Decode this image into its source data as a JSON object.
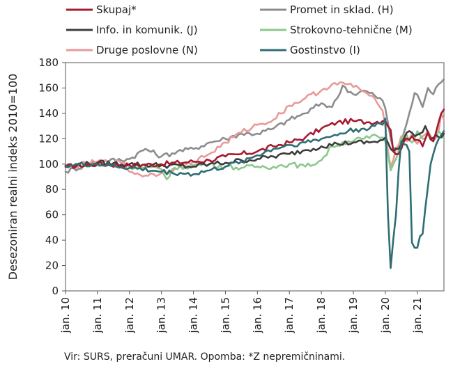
{
  "chart_data": {
    "type": "line",
    "title": "",
    "ylabel": "Desezoniran realni indeks 2010=100",
    "xlabel": "",
    "ylim": [
      0,
      180
    ],
    "yticks": [
      0,
      20,
      40,
      60,
      80,
      100,
      120,
      140,
      160,
      180
    ],
    "x_start": "2010-01",
    "x_step": "month",
    "x_end": "2021-09",
    "xticks": [
      "jan. 10",
      "jan. 11",
      "jan. 12",
      "jan. 13",
      "jan. 14",
      "jan. 15",
      "jan. 16",
      "jan. 17",
      "jan. 18",
      "jan. 19",
      "jan. 20",
      "jan. 21"
    ],
    "grid": false,
    "legend_position": "top",
    "series": [
      {
        "name": "Skupaj*",
        "color": "#a6192e",
        "keypoints": [
          [
            0,
            98
          ],
          [
            12,
            100
          ],
          [
            24,
            99
          ],
          [
            36,
            100
          ],
          [
            48,
            102
          ],
          [
            54,
            103
          ],
          [
            60,
            106
          ],
          [
            66,
            108
          ],
          [
            72,
            110
          ],
          [
            78,
            114
          ],
          [
            84,
            117
          ],
          [
            90,
            121
          ],
          [
            96,
            128
          ],
          [
            102,
            133
          ],
          [
            108,
            134
          ],
          [
            114,
            133
          ],
          [
            119,
            134
          ],
          [
            120,
            134
          ],
          [
            122,
            127
          ],
          [
            123,
            110
          ],
          [
            125,
            108
          ],
          [
            127,
            118
          ],
          [
            130,
            122
          ],
          [
            132,
            119
          ],
          [
            134,
            114
          ],
          [
            136,
            125
          ],
          [
            138,
            118
          ],
          [
            140,
            133
          ],
          [
            141,
            140
          ],
          [
            142,
            143
          ]
        ]
      },
      {
        "name": "Promet in sklad. (H)",
        "color": "#8c8c8c",
        "keypoints": [
          [
            0,
            94
          ],
          [
            12,
            102
          ],
          [
            24,
            104
          ],
          [
            30,
            112
          ],
          [
            36,
            106
          ],
          [
            42,
            110
          ],
          [
            48,
            112
          ],
          [
            54,
            117
          ],
          [
            60,
            120
          ],
          [
            66,
            124
          ],
          [
            72,
            124
          ],
          [
            78,
            128
          ],
          [
            84,
            135
          ],
          [
            90,
            140
          ],
          [
            96,
            148
          ],
          [
            100,
            145
          ],
          [
            102,
            152
          ],
          [
            104,
            162
          ],
          [
            108,
            155
          ],
          [
            112,
            158
          ],
          [
            116,
            154
          ],
          [
            119,
            150
          ],
          [
            120,
            144
          ],
          [
            122,
            120
          ],
          [
            123,
            112
          ],
          [
            125,
            112
          ],
          [
            127,
            125
          ],
          [
            129,
            140
          ],
          [
            131,
            156
          ],
          [
            133,
            150
          ],
          [
            134,
            145
          ],
          [
            136,
            160
          ],
          [
            138,
            155
          ],
          [
            140,
            163
          ],
          [
            142,
            167
          ]
        ]
      },
      {
        "name": "Info. in komunik. (J)",
        "color": "#3c3c3c",
        "keypoints": [
          [
            0,
            98
          ],
          [
            12,
            101
          ],
          [
            24,
            100
          ],
          [
            36,
            99
          ],
          [
            48,
            98
          ],
          [
            54,
            100
          ],
          [
            60,
            101
          ],
          [
            66,
            103
          ],
          [
            72,
            104
          ],
          [
            78,
            106
          ],
          [
            84,
            108
          ],
          [
            90,
            111
          ],
          [
            96,
            114
          ],
          [
            102,
            116
          ],
          [
            108,
            117
          ],
          [
            114,
            117
          ],
          [
            119,
            119
          ],
          [
            120,
            121
          ],
          [
            122,
            112
          ],
          [
            123,
            110
          ],
          [
            125,
            112
          ],
          [
            127,
            120
          ],
          [
            129,
            126
          ],
          [
            131,
            122
          ],
          [
            133,
            124
          ],
          [
            135,
            130
          ],
          [
            137,
            120
          ],
          [
            139,
            123
          ],
          [
            141,
            121
          ],
          [
            142,
            124
          ]
        ]
      },
      {
        "name": "Strokovno-tehnične (M)",
        "color": "#8cc88c",
        "keypoints": [
          [
            0,
            99
          ],
          [
            12,
            99
          ],
          [
            24,
            98
          ],
          [
            36,
            96
          ],
          [
            38,
            88
          ],
          [
            40,
            96
          ],
          [
            48,
            99
          ],
          [
            54,
            100
          ],
          [
            60,
            98
          ],
          [
            66,
            97
          ],
          [
            72,
            98
          ],
          [
            78,
            98
          ],
          [
            84,
            100
          ],
          [
            90,
            98
          ],
          [
            96,
            103
          ],
          [
            100,
            114
          ],
          [
            106,
            118
          ],
          [
            112,
            120
          ],
          [
            117,
            122
          ],
          [
            119,
            121
          ],
          [
            120,
            118
          ],
          [
            121,
            108
          ],
          [
            122,
            95
          ],
          [
            124,
            104
          ],
          [
            126,
            120
          ],
          [
            128,
            123
          ],
          [
            130,
            117
          ],
          [
            132,
            126
          ],
          [
            134,
            120
          ],
          [
            136,
            124
          ],
          [
            138,
            118
          ],
          [
            140,
            126
          ],
          [
            142,
            120
          ]
        ]
      },
      {
        "name": "Druge poslovne (N)",
        "color": "#e89a9a",
        "keypoints": [
          [
            0,
            97
          ],
          [
            12,
            102
          ],
          [
            22,
            101
          ],
          [
            24,
            94
          ],
          [
            30,
            91
          ],
          [
            36,
            93
          ],
          [
            42,
            96
          ],
          [
            48,
            102
          ],
          [
            54,
            108
          ],
          [
            60,
            117
          ],
          [
            66,
            125
          ],
          [
            72,
            131
          ],
          [
            78,
            135
          ],
          [
            84,
            146
          ],
          [
            90,
            152
          ],
          [
            96,
            158
          ],
          [
            100,
            163
          ],
          [
            106,
            163
          ],
          [
            110,
            160
          ],
          [
            114,
            154
          ],
          [
            117,
            148
          ],
          [
            119,
            142
          ],
          [
            120,
            130
          ],
          [
            121,
            110
          ],
          [
            122,
            98
          ],
          [
            124,
            112
          ],
          [
            126,
            122
          ],
          [
            128,
            118
          ],
          [
            130,
            124
          ],
          [
            132,
            116
          ],
          [
            134,
            122
          ],
          [
            136,
            126
          ],
          [
            138,
            118
          ],
          [
            140,
            126
          ],
          [
            141,
            140
          ],
          [
            142,
            135
          ]
        ]
      },
      {
        "name": "Gostinstvo (I)",
        "color": "#2e6e73",
        "keypoints": [
          [
            0,
            99
          ],
          [
            12,
            100
          ],
          [
            24,
            97
          ],
          [
            36,
            94
          ],
          [
            48,
            92
          ],
          [
            54,
            95
          ],
          [
            60,
            98
          ],
          [
            66,
            102
          ],
          [
            72,
            107
          ],
          [
            78,
            112
          ],
          [
            84,
            115
          ],
          [
            90,
            117
          ],
          [
            96,
            120
          ],
          [
            100,
            122
          ],
          [
            106,
            126
          ],
          [
            112,
            128
          ],
          [
            116,
            130
          ],
          [
            118,
            132
          ],
          [
            119,
            131
          ],
          [
            120,
            136
          ],
          [
            121,
            60
          ],
          [
            122,
            18
          ],
          [
            124,
            60
          ],
          [
            125,
            95
          ],
          [
            126,
            118
          ],
          [
            128,
            115
          ],
          [
            129,
            110
          ],
          [
            130,
            38
          ],
          [
            131,
            34
          ],
          [
            132,
            34
          ],
          [
            133,
            43
          ],
          [
            134,
            45
          ],
          [
            135,
            65
          ],
          [
            137,
            100
          ],
          [
            139,
            115
          ],
          [
            141,
            123
          ],
          [
            142,
            126
          ]
        ]
      }
    ]
  },
  "source_note": "Vir: SURS, preračuni UMAR. Opomba: *Z nepremičninami."
}
